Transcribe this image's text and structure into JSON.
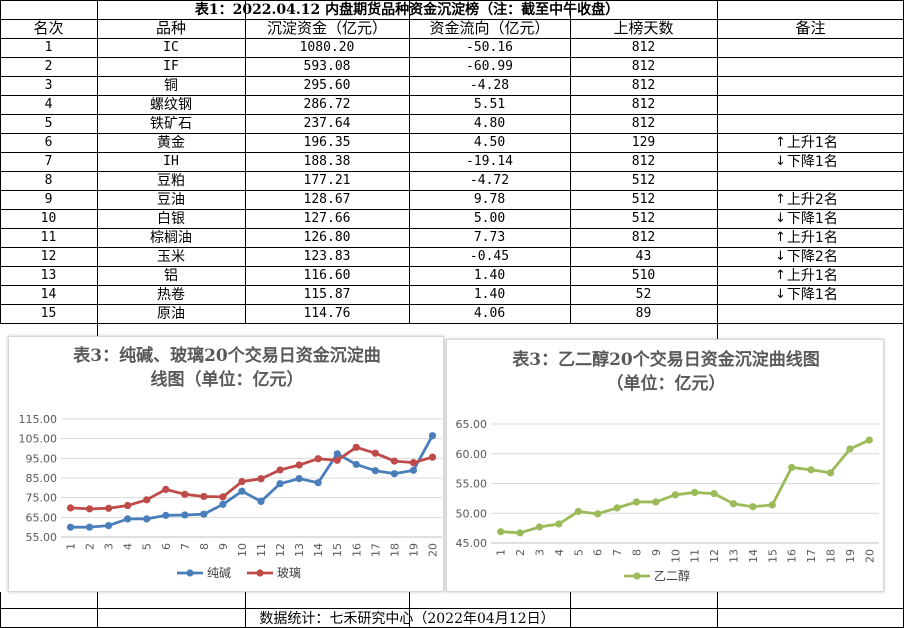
{
  "table": {
    "title": "表1：2022.04.12 内盘期货品种资金沉淀榜（注：截至中午收盘）",
    "headers": [
      "名次",
      "品种",
      "沉淀资金（亿元）",
      "资金流向（亿元）",
      "上榜天数",
      "备注"
    ],
    "rows": [
      {
        "rank": "1",
        "name": "IC",
        "funds": "1080.20",
        "flow": "-50.16",
        "days": "812",
        "note": ""
      },
      {
        "rank": "2",
        "name": "IF",
        "funds": "593.08",
        "flow": "-60.99",
        "days": "812",
        "note": ""
      },
      {
        "rank": "3",
        "name": "铜",
        "funds": "295.60",
        "flow": "-4.28",
        "days": "812",
        "note": ""
      },
      {
        "rank": "4",
        "name": "螺纹钢",
        "funds": "286.72",
        "flow": "5.51",
        "days": "812",
        "note": ""
      },
      {
        "rank": "5",
        "name": "铁矿石",
        "funds": "237.64",
        "flow": "4.80",
        "days": "812",
        "note": ""
      },
      {
        "rank": "6",
        "name": "黄金",
        "funds": "196.35",
        "flow": "4.50",
        "days": "129",
        "note": "上升1名",
        "note_dir": "up"
      },
      {
        "rank": "7",
        "name": "IH",
        "funds": "188.38",
        "flow": "-19.14",
        "days": "812",
        "note": "下降1名",
        "note_dir": "down"
      },
      {
        "rank": "8",
        "name": "豆粕",
        "funds": "177.21",
        "flow": "-4.72",
        "days": "512",
        "note": ""
      },
      {
        "rank": "9",
        "name": "豆油",
        "funds": "128.67",
        "flow": "9.78",
        "days": "512",
        "note": "上升2名",
        "note_dir": "up"
      },
      {
        "rank": "10",
        "name": "白银",
        "funds": "127.66",
        "flow": "5.00",
        "days": "512",
        "note": "下降1名",
        "note_dir": "down"
      },
      {
        "rank": "11",
        "name": "棕榈油",
        "funds": "126.80",
        "flow": "7.73",
        "days": "812",
        "note": "上升1名",
        "note_dir": "up"
      },
      {
        "rank": "12",
        "name": "玉米",
        "funds": "123.83",
        "flow": "-0.45",
        "days": "43",
        "note": "下降2名",
        "note_dir": "down"
      },
      {
        "rank": "13",
        "name": "铝",
        "funds": "116.60",
        "flow": "1.40",
        "days": "510",
        "note": "上升1名",
        "note_dir": "up"
      },
      {
        "rank": "14",
        "name": "热卷",
        "funds": "115.87",
        "flow": "1.40",
        "days": "52",
        "note": "下降1名",
        "note_dir": "down"
      },
      {
        "rank": "15",
        "name": "原油",
        "funds": "114.76",
        "flow": "4.06",
        "days": "89",
        "note": ""
      }
    ],
    "footer": "数据统计：七禾研究中心（2022年04月12日）"
  },
  "chart_data": [
    {
      "type": "line",
      "title": "表3：纯碱、玻璃20个交易日资金沉淀曲线图（单位：亿元）",
      "title_line1": "表3：纯碱、玻璃20个交易日资金沉淀曲",
      "title_line2": "线图（单位：亿元）",
      "x": [
        "1",
        "2",
        "3",
        "4",
        "5",
        "6",
        "7",
        "8",
        "9",
        "10",
        "11",
        "12",
        "13",
        "14",
        "15",
        "16",
        "17",
        "18",
        "19",
        "20"
      ],
      "ylim": [
        55,
        115
      ],
      "yticks": [
        "55.00",
        "65.00",
        "75.00",
        "85.00",
        "95.00",
        "105.00",
        "115.00"
      ],
      "series": [
        {
          "name": "纯碱",
          "color": "#4a7ebb",
          "values": [
            60.0,
            60.0,
            60.8,
            64.2,
            64.2,
            66.0,
            66.2,
            66.6,
            71.6,
            78.3,
            73.1,
            82.1,
            84.7,
            82.6,
            97.3,
            91.9,
            88.7,
            87.2,
            88.9,
            106.5
          ]
        },
        {
          "name": "玻璃",
          "color": "#be4b48",
          "values": [
            69.8,
            69.3,
            69.6,
            71.0,
            73.9,
            79.2,
            76.7,
            75.6,
            75.4,
            83.2,
            84.6,
            89.1,
            91.6,
            94.8,
            94.0,
            100.6,
            97.6,
            93.6,
            92.8,
            95.6
          ]
        }
      ]
    },
    {
      "type": "line",
      "title": "表3：乙二醇20个交易日资金沉淀曲线图（单位：亿元）",
      "title_line1": "表3：乙二醇20个交易日资金沉淀曲线图",
      "title_line2": "（单位：亿元）",
      "x": [
        "1",
        "2",
        "3",
        "4",
        "5",
        "6",
        "7",
        "8",
        "9",
        "10",
        "11",
        "12",
        "13",
        "14",
        "15",
        "16",
        "17",
        "18",
        "19",
        "20"
      ],
      "ylim": [
        45,
        65
      ],
      "yticks": [
        "45.00",
        "50.00",
        "55.00",
        "60.00",
        "65.00"
      ],
      "series": [
        {
          "name": "乙二醇",
          "color": "#9bbb59",
          "values": [
            46.9,
            46.7,
            47.7,
            48.2,
            50.3,
            49.9,
            50.9,
            51.9,
            51.9,
            53.1,
            53.5,
            53.3,
            51.6,
            51.1,
            51.4,
            57.7,
            57.3,
            56.8,
            60.8,
            62.3
          ]
        }
      ]
    }
  ]
}
